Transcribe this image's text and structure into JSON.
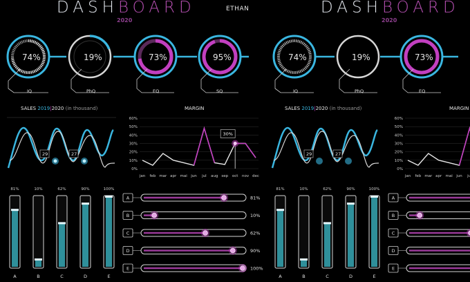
{
  "dashboard": {
    "title_part1": "DASH",
    "title_part2": "BOARD",
    "user": "ETHAN",
    "year": "2020"
  },
  "gauges": [
    {
      "label": "IQ",
      "value_text": "74%",
      "value": 0.74,
      "color": "#3ab6e0"
    },
    {
      "label": "PhQ",
      "value_text": "19%",
      "value": 0.19,
      "color": "#3ab6e0"
    },
    {
      "label": "EQ",
      "value_text": "73%",
      "value": 0.73,
      "color": "#c23fc0"
    },
    {
      "label": "SQ",
      "value_text": "95%",
      "value": 0.95,
      "color": "#c23fc0"
    }
  ],
  "sales": {
    "title_prefix": "SALES",
    "year_a": "2019",
    "sep": "|",
    "year_b": "2020",
    "suffix": "(in thousand)",
    "callout_a": "29",
    "callout_b": "27"
  },
  "margin": {
    "title": "MARGIN",
    "callout": "30%"
  },
  "chart_data": [
    {
      "type": "line",
      "title": "MARGIN",
      "x": [
        "jan",
        "feb",
        "mar",
        "apr",
        "mai",
        "jun",
        "jul",
        "aug",
        "sep",
        "oct",
        "nov",
        "dec"
      ],
      "yticks": [
        "60%",
        "50%",
        "40%",
        "30%",
        "20%",
        "10%",
        "0%"
      ],
      "ylim": [
        0,
        60
      ],
      "series": [
        {
          "values": [
            10,
            4,
            18,
            10,
            7,
            4,
            48,
            7,
            5,
            30,
            30,
            13
          ]
        }
      ],
      "highlight": {
        "x": "oct",
        "label": "30%"
      }
    },
    {
      "type": "bar",
      "categories": [
        "A",
        "B",
        "C",
        "D",
        "E"
      ],
      "values": [
        81,
        10,
        62,
        90,
        100
      ],
      "value_labels": [
        "81%",
        "10%",
        "62%",
        "90%",
        "100%"
      ],
      "vertical": true
    },
    {
      "type": "bar",
      "categories": [
        "A",
        "B",
        "C",
        "D",
        "E"
      ],
      "values": [
        81,
        10,
        62,
        90,
        100
      ],
      "value_labels": [
        "81%",
        "10%",
        "62%",
        "90%",
        "100%"
      ],
      "horizontal": true
    }
  ],
  "colors": {
    "accent_blue": "#3ab6e0",
    "accent_magenta": "#c23fc0",
    "background": "#000000"
  }
}
